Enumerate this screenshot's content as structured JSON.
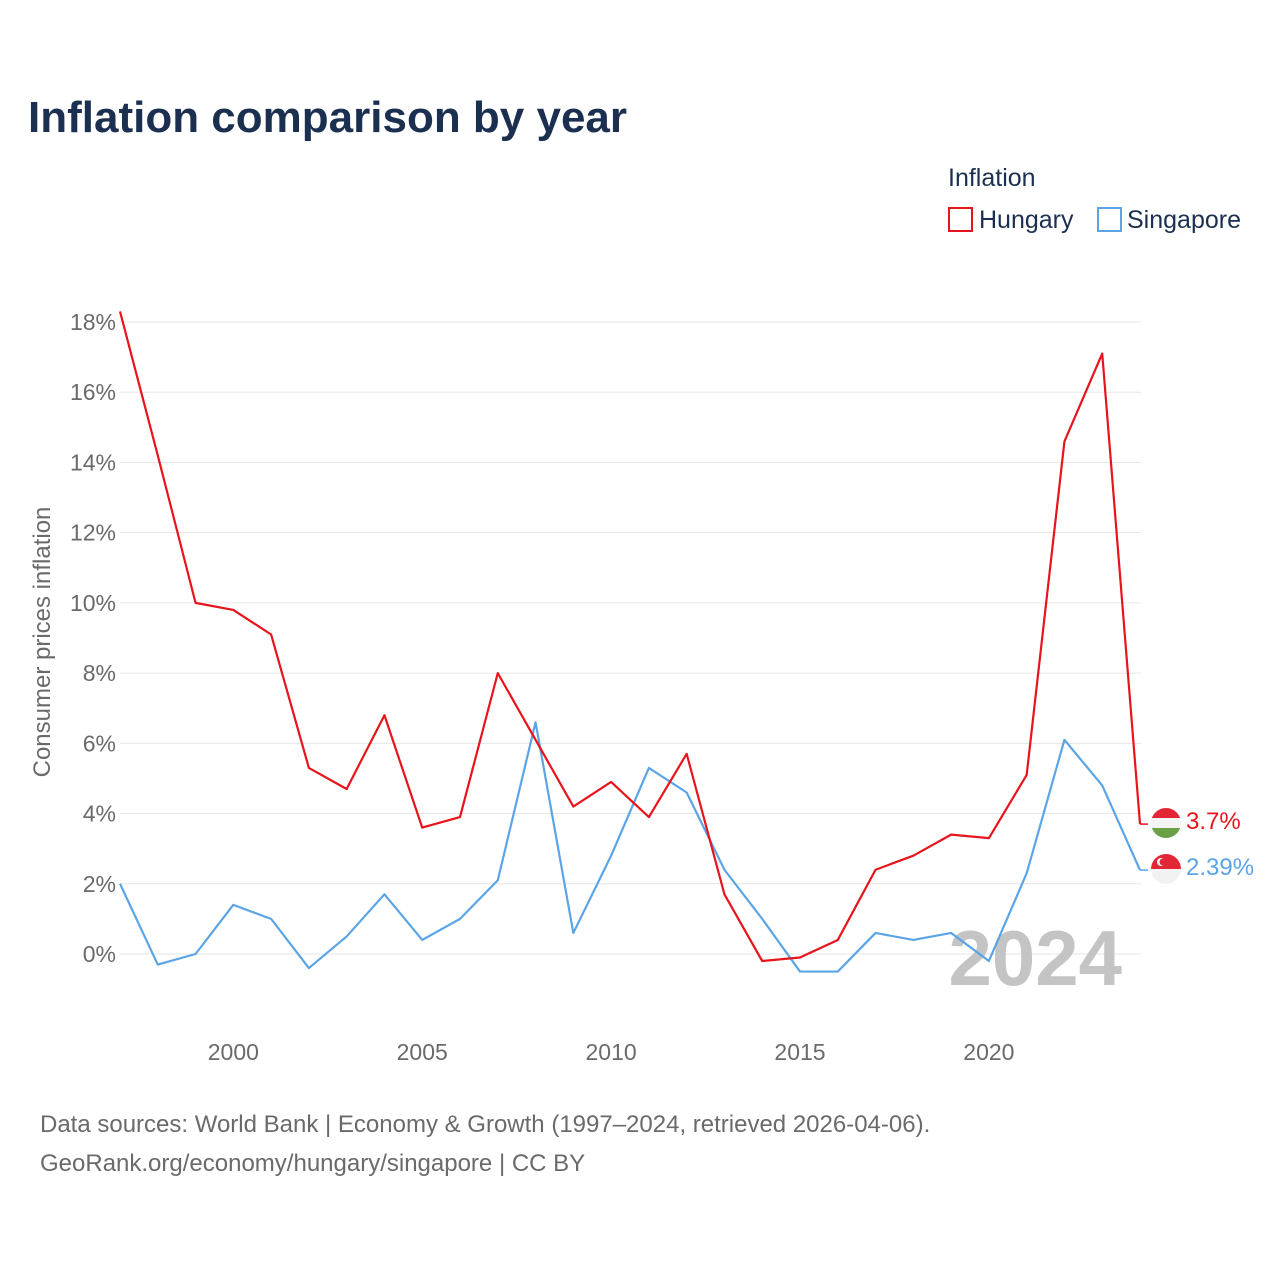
{
  "chart_data": {
    "type": "line",
    "title": "Inflation comparison by year",
    "ylabel": "Consumer prices inflation",
    "xlabel": "",
    "legend": {
      "title": "Inflation",
      "placement": "top-right"
    },
    "xlim": [
      1997,
      2024
    ],
    "ylim": [
      -1.5,
      18.5
    ],
    "x_ticks": [
      2000,
      2005,
      2010,
      2015,
      2020
    ],
    "y_ticks": [
      0,
      2,
      4,
      6,
      8,
      10,
      12,
      14,
      16,
      18
    ],
    "y_tick_labels": [
      "0%",
      "2%",
      "4%",
      "6%",
      "8%",
      "10%",
      "12%",
      "14%",
      "16%",
      "18%"
    ],
    "grid": true,
    "current_year_label": "2024",
    "x": [
      1997,
      1998,
      1999,
      2000,
      2001,
      2002,
      2003,
      2004,
      2005,
      2006,
      2007,
      2008,
      2009,
      2010,
      2011,
      2012,
      2013,
      2014,
      2015,
      2016,
      2017,
      2018,
      2019,
      2020,
      2021,
      2022,
      2023,
      2024
    ],
    "series": [
      {
        "name": "Hungary",
        "color": "#e8141c",
        "end_label": "3.7%",
        "values": [
          18.3,
          14.2,
          10.0,
          9.8,
          9.1,
          5.3,
          4.7,
          6.8,
          3.6,
          3.9,
          8.0,
          6.1,
          4.2,
          4.9,
          3.9,
          5.7,
          1.7,
          -0.2,
          -0.1,
          0.4,
          2.4,
          2.8,
          3.4,
          3.3,
          5.1,
          14.6,
          17.1,
          3.7
        ]
      },
      {
        "name": "Singapore",
        "color": "#5ba4e6",
        "end_label": "2.39%",
        "values": [
          2.0,
          -0.3,
          0.0,
          1.4,
          1.0,
          -0.4,
          0.5,
          1.7,
          0.4,
          1.0,
          2.1,
          6.6,
          0.6,
          2.8,
          5.3,
          4.6,
          2.4,
          1.0,
          -0.5,
          -0.5,
          0.6,
          0.4,
          0.6,
          -0.2,
          2.3,
          6.1,
          4.8,
          2.39
        ]
      }
    ],
    "source_line_1": "Data sources: World Bank | Economy & Growth (1997–2024, retrieved 2026-04-06).",
    "source_line_2": "GeoRank.org/economy/hungary/singapore | CC BY"
  }
}
